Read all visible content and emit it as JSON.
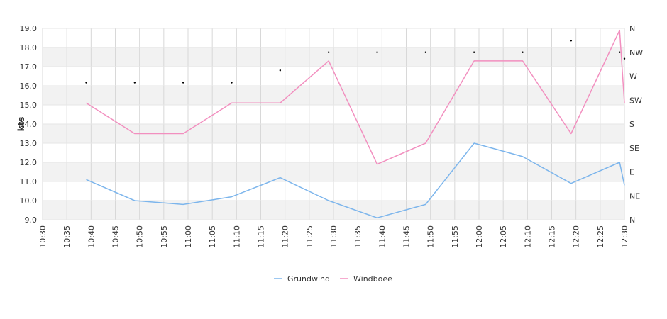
{
  "chart_data": {
    "type": "line",
    "ylabel": "kts",
    "ylim": [
      9.0,
      19.0
    ],
    "yticks": [
      "9.0",
      "10.0",
      "11.0",
      "12.0",
      "13.0",
      "14.0",
      "15.0",
      "16.0",
      "17.0",
      "18.0",
      "19.0"
    ],
    "xticks": [
      "10:30",
      "10:35",
      "10:40",
      "10:45",
      "10:50",
      "10:55",
      "11:00",
      "11:05",
      "11:10",
      "11:15",
      "11:20",
      "11:25",
      "11:30",
      "11:35",
      "11:40",
      "11:45",
      "11:50",
      "11:55",
      "12:00",
      "12:05",
      "12:10",
      "12:15",
      "12:20",
      "12:25",
      "12:30"
    ],
    "x_range_minutes": [
      630,
      750
    ],
    "right_axis_labels": [
      "N",
      "NE",
      "E",
      "SE",
      "S",
      "SW",
      "W",
      "NW",
      "N"
    ],
    "right_axis_range": [
      0,
      360
    ],
    "grid": true,
    "legend_position": "bottom-center",
    "colors": {
      "grundwind": "#7cb5ec",
      "windboee": "#f28fbf",
      "band": "#f2f2f2",
      "grid": "#d8d8d8"
    },
    "series": [
      {
        "name": "Grundwind",
        "x": [
          "10:39",
          "10:49",
          "10:59",
          "11:09",
          "11:19",
          "11:29",
          "11:39",
          "11:49",
          "11:59",
          "12:09",
          "12:19",
          "12:29",
          "12:30"
        ],
        "values": [
          11.1,
          10.0,
          9.8,
          10.2,
          11.2,
          10.0,
          9.1,
          9.8,
          13.0,
          12.3,
          10.9,
          12.0,
          10.8
        ]
      },
      {
        "name": "Windboee",
        "x": [
          "10:39",
          "10:49",
          "10:59",
          "11:09",
          "11:19",
          "11:29",
          "11:39",
          "11:49",
          "11:59",
          "12:09",
          "12:19",
          "12:29",
          "12:30"
        ],
        "values": [
          15.1,
          13.5,
          13.5,
          15.1,
          15.1,
          17.3,
          11.9,
          13.0,
          17.3,
          17.3,
          13.5,
          18.9,
          15.1
        ]
      }
    ],
    "direction_markers": {
      "x": [
        "10:39",
        "10:49",
        "10:59",
        "11:09",
        "11:19",
        "11:29",
        "11:39",
        "11:49",
        "11:59",
        "12:09",
        "12:19",
        "12:29",
        "12:30"
      ],
      "degrees": [
        258,
        258,
        258,
        258,
        281,
        315,
        315,
        315,
        315,
        315,
        337,
        315,
        303
      ]
    }
  }
}
